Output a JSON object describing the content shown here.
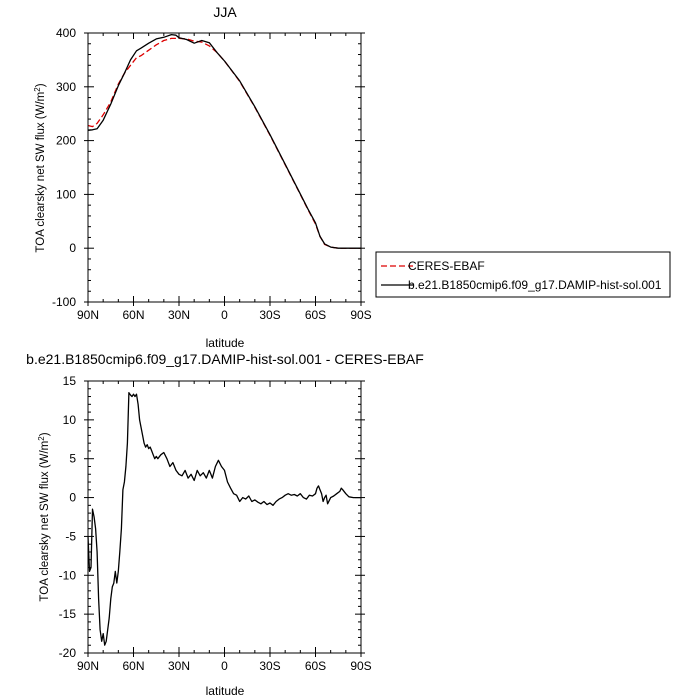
{
  "chart_data": [
    {
      "type": "line",
      "title": "JJA",
      "xlabel": "latitude",
      "ylabel_main": "TOA clearsky net SW flux (W/m",
      "ylabel_sup": "2",
      "ylabel_end": ")",
      "x_ticks": [
        {
          "value": 90,
          "label": "90N"
        },
        {
          "value": 60,
          "label": "60N"
        },
        {
          "value": 30,
          "label": "30N"
        },
        {
          "value": 0,
          "label": "0"
        },
        {
          "value": -30,
          "label": "30S"
        },
        {
          "value": -60,
          "label": "60S"
        },
        {
          "value": -90,
          "label": "90S"
        }
      ],
      "xlim": [
        90,
        -90
      ],
      "ylim": [
        -100,
        400
      ],
      "y_ticks": [
        -100,
        0,
        100,
        200,
        300,
        400
      ],
      "legend": {
        "position": "right"
      },
      "series": [
        {
          "name": "CERES-EBAF",
          "color": "#dd0000",
          "dash": true,
          "x": [
            90,
            87,
            84,
            80,
            75,
            70,
            66,
            62,
            58,
            55,
            50,
            45,
            40,
            35,
            30,
            25,
            20,
            15,
            10,
            5,
            0,
            -10,
            -20,
            -30,
            -40,
            -50,
            -55,
            -60,
            -63,
            -66,
            -70,
            -75,
            -80,
            -85,
            -90
          ],
          "y": [
            228,
            226,
            232,
            248,
            272,
            305,
            325,
            340,
            354,
            358,
            368,
            378,
            386,
            390,
            390,
            389,
            385,
            383,
            376,
            364,
            348,
            310,
            262,
            210,
            155,
            100,
            72,
            45,
            22,
            7,
            2,
            0,
            0,
            0,
            0
          ]
        },
        {
          "name": "b.e21.B1850cmip6.f09_g17.DAMIP-hist-sol.001",
          "color": "#000000",
          "dash": false,
          "x": [
            90,
            87,
            84,
            80,
            75,
            70,
            66,
            62,
            58,
            55,
            50,
            45,
            40,
            35,
            32,
            30,
            25,
            20,
            15,
            10,
            5,
            0,
            -10,
            -20,
            -30,
            -40,
            -50,
            -55,
            -60,
            -63,
            -66,
            -70,
            -75,
            -80,
            -85,
            -90
          ],
          "y": [
            219,
            220,
            222,
            238,
            268,
            302,
            325,
            350,
            367,
            372,
            381,
            389,
            392,
            397,
            396,
            391,
            388,
            381,
            386,
            382,
            364,
            348,
            311,
            263,
            211,
            156,
            101,
            73,
            47,
            22,
            8,
            2,
            0,
            0,
            0,
            0
          ]
        }
      ]
    },
    {
      "type": "line",
      "title": "b.e21.B1850cmip6.f09_g17.DAMIP-hist-sol.001 - CERES-EBAF",
      "xlabel": "latitude",
      "ylabel_main": "TOA clearsky net SW flux (W/m",
      "ylabel_sup": "2",
      "ylabel_end": ")",
      "x_ticks": [
        {
          "value": 90,
          "label": "90N"
        },
        {
          "value": 60,
          "label": "60N"
        },
        {
          "value": 30,
          "label": "30N"
        },
        {
          "value": 0,
          "label": "0"
        },
        {
          "value": -30,
          "label": "30S"
        },
        {
          "value": -60,
          "label": "60S"
        },
        {
          "value": -90,
          "label": "90S"
        }
      ],
      "xlim": [
        90,
        -90
      ],
      "ylim": [
        -20,
        15
      ],
      "y_ticks": [
        -20,
        -15,
        -10,
        -5,
        0,
        5,
        10,
        15
      ],
      "series": [
        {
          "name": "",
          "color": "#000000",
          "dash": false,
          "x": [
            90,
            89,
            88,
            87,
            86,
            85,
            84,
            83,
            82,
            81,
            80,
            79,
            78,
            77,
            76,
            75,
            74,
            73,
            72,
            71,
            70,
            69,
            68,
            67,
            66,
            65,
            64,
            63,
            62,
            61,
            60,
            59,
            58,
            57,
            56,
            55,
            54,
            53,
            52,
            51,
            50,
            49,
            48,
            47,
            46,
            45,
            44,
            42,
            40,
            38,
            36,
            34,
            32,
            30,
            28,
            26,
            24,
            22,
            20,
            18,
            16,
            14,
            12,
            10,
            9,
            8,
            6,
            4,
            2,
            0,
            -2,
            -4,
            -6,
            -8,
            -10,
            -12,
            -14,
            -16,
            -18,
            -20,
            -22,
            -24,
            -26,
            -28,
            -30,
            -32,
            -34,
            -36,
            -38,
            -40,
            -42,
            -44,
            -46,
            -48,
            -50,
            -52,
            -54,
            -56,
            -58,
            -60,
            -61,
            -62,
            -63,
            -64,
            -65,
            -66,
            -67,
            -68,
            -70,
            -72,
            -74,
            -76,
            -77,
            -78,
            -80,
            -82,
            -85,
            -90
          ],
          "y": [
            -5,
            -9.5,
            -9.0,
            -1.5,
            -2.5,
            -4.0,
            -7.0,
            -13.0,
            -17.0,
            -18.5,
            -17.5,
            -19.0,
            -18.5,
            -17.0,
            -15.5,
            -13.0,
            -11.5,
            -11.0,
            -9.5,
            -11.0,
            -9.5,
            -7.0,
            -4.0,
            1.0,
            2.0,
            4.0,
            7.0,
            13.5,
            13.2,
            13.0,
            13.3,
            13.0,
            13.3,
            12.0,
            10.0,
            9.0,
            8.0,
            7.0,
            6.5,
            6.8,
            6.3,
            6.5,
            6.0,
            5.5,
            5.0,
            5.3,
            5.0,
            5.5,
            5.8,
            5.0,
            4.0,
            4.5,
            3.5,
            3.0,
            2.8,
            3.5,
            2.5,
            3.0,
            2.2,
            3.5,
            2.8,
            3.2,
            2.5,
            3.5,
            3.0,
            2.5,
            4.0,
            4.8,
            4.0,
            3.5,
            2.0,
            1.2,
            0.5,
            0.3,
            -0.5,
            0.0,
            -0.2,
            0.2,
            -0.5,
            -0.3,
            -0.6,
            -0.8,
            -0.5,
            -0.9,
            -0.7,
            -1.0,
            -0.5,
            -0.2,
            0.0,
            0.3,
            0.5,
            0.3,
            0.4,
            0.2,
            0.5,
            0.0,
            -0.2,
            0.3,
            0.2,
            0.5,
            1.2,
            1.5,
            1.0,
            0.5,
            -0.5,
            0.0,
            0.3,
            -0.8,
            0.0,
            0.2,
            0.5,
            0.8,
            1.2,
            1.0,
            0.5,
            0.1,
            0.0,
            0.0
          ]
        }
      ]
    }
  ]
}
